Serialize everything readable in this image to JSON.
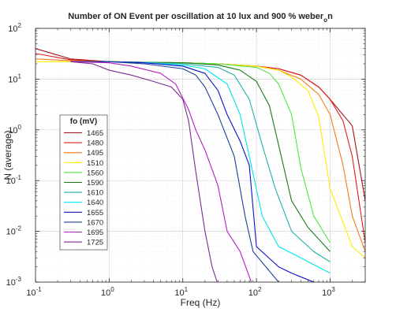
{
  "chart_data": {
    "type": "line",
    "title": "Number of ON Event per oscillation at 10 lux and 900 % weber",
    "title_subscript": "o",
    "title_suffix": "n",
    "xlabel": "Freq (Hz)",
    "ylabel": "N (average)",
    "xscale": "log",
    "yscale": "log",
    "xlim": [
      0.1,
      3000
    ],
    "ylim": [
      0.001,
      100
    ],
    "grid": true,
    "x_tick_labels": [
      {
        "base": "10",
        "exp": "-1"
      },
      {
        "base": "10",
        "exp": "0"
      },
      {
        "base": "10",
        "exp": "1"
      },
      {
        "base": "10",
        "exp": "2"
      },
      {
        "base": "10",
        "exp": "3"
      }
    ],
    "y_tick_labels": [
      {
        "base": "10",
        "exp": "-3"
      },
      {
        "base": "10",
        "exp": "-2"
      },
      {
        "base": "10",
        "exp": "-1"
      },
      {
        "base": "10",
        "exp": "0"
      },
      {
        "base": "10",
        "exp": "1"
      },
      {
        "base": "10",
        "exp": "2"
      }
    ],
    "legend_title": "fo (mV)",
    "legend_position": "middle-left",
    "series": [
      {
        "name": "1465",
        "color": "#a50f15",
        "x": [
          0.1,
          0.3,
          1,
          3,
          10,
          30,
          100,
          200,
          400,
          700,
          1000,
          2000,
          3000
        ],
        "y": [
          40,
          25,
          22,
          21.5,
          21,
          20,
          18,
          16,
          12,
          7,
          4,
          1.2,
          0.04
        ]
      },
      {
        "name": "1480",
        "color": "#e31a1c",
        "x": [
          0.1,
          0.3,
          1,
          3,
          10,
          30,
          100,
          200,
          400,
          700,
          1000,
          1500,
          2000,
          3000
        ],
        "y": [
          32,
          24,
          22,
          21.5,
          21,
          20,
          18,
          16,
          12,
          7,
          4,
          1.5,
          0.3,
          0.006
        ]
      },
      {
        "name": "1495",
        "color": "#f47c20",
        "x": [
          0.1,
          0.3,
          1,
          3,
          10,
          30,
          100,
          200,
          400,
          700,
          1000,
          1500,
          2000,
          3000
        ],
        "y": [
          25,
          23,
          22,
          21.5,
          21,
          20,
          18,
          15,
          10,
          5,
          2,
          0.2,
          0.02,
          0.004
        ]
      },
      {
        "name": "1510",
        "color": "#ffeb00",
        "x": [
          0.1,
          0.3,
          1,
          3,
          10,
          30,
          100,
          200,
          300,
          500,
          700,
          1000,
          2000,
          3000
        ],
        "y": [
          22,
          22,
          22,
          21.5,
          21,
          20,
          18,
          15,
          11,
          6,
          1.8,
          0.07,
          0.005,
          0.003
        ]
      },
      {
        "name": "1560",
        "color": "#4ee842",
        "x": [
          0.3,
          1,
          3,
          10,
          30,
          100,
          150,
          200,
          300,
          400,
          600,
          1000
        ],
        "y": [
          22,
          22,
          21.5,
          21,
          20,
          17,
          13,
          8,
          2,
          0.18,
          0.02,
          0.006
        ]
      },
      {
        "name": "1590",
        "color": "#1a7a1a",
        "x": [
          0.3,
          1,
          3,
          10,
          30,
          60,
          100,
          150,
          200,
          300,
          500,
          1000
        ],
        "y": [
          22,
          22,
          21.5,
          21,
          19,
          15,
          9,
          3,
          0.5,
          0.04,
          0.012,
          0.004
        ]
      },
      {
        "name": "1610",
        "color": "#20b2aa",
        "x": [
          0.3,
          1,
          3,
          10,
          30,
          50,
          80,
          120,
          180,
          300,
          600,
          1000
        ],
        "y": [
          22,
          22,
          21.5,
          20,
          17,
          12,
          4,
          0.5,
          0.07,
          0.01,
          0.004,
          0.0025
        ]
      },
      {
        "name": "1640",
        "color": "#00e5ee",
        "x": [
          0.3,
          1,
          3,
          10,
          20,
          40,
          60,
          80,
          120,
          200,
          400,
          1000
        ],
        "y": [
          22,
          22,
          21,
          19,
          16,
          8,
          2,
          0.3,
          0.02,
          0.005,
          0.003,
          0.0015
        ]
      },
      {
        "name": "1655",
        "color": "#0a10c8",
        "x": [
          0.3,
          1,
          3,
          10,
          20,
          30,
          40,
          60,
          80,
          100,
          200,
          300,
          600,
          800
        ],
        "y": [
          22,
          22,
          21,
          18,
          13,
          6,
          2,
          0.6,
          0.2,
          0.005,
          0.002,
          0.0015,
          0.001,
          0.0008
        ]
      },
      {
        "name": "1670",
        "color": "#1f3d99",
        "x": [
          0.3,
          1,
          3,
          10,
          15,
          20,
          30,
          50,
          70,
          90,
          200
        ],
        "y": [
          22,
          22,
          20,
          16,
          12,
          7,
          2,
          0.3,
          0.02,
          0.004,
          0.001
        ]
      },
      {
        "name": "1695",
        "color": "#b020c0",
        "x": [
          0.3,
          1,
          2,
          5,
          8,
          12,
          15,
          20,
          30,
          40,
          60,
          90
        ],
        "y": [
          22,
          21,
          18,
          13,
          8,
          2.5,
          1,
          0.4,
          0.08,
          0.01,
          0.004,
          0.0008
        ]
      },
      {
        "name": "1725",
        "color": "#7a2a90",
        "x": [
          0.3,
          0.6,
          1,
          2,
          4,
          7,
          10,
          12,
          15,
          20,
          25,
          30,
          40
        ],
        "y": [
          22,
          20,
          15,
          12,
          9,
          7,
          4,
          1.5,
          0.15,
          0.01,
          0.002,
          0.0009,
          0.0007
        ]
      }
    ]
  }
}
